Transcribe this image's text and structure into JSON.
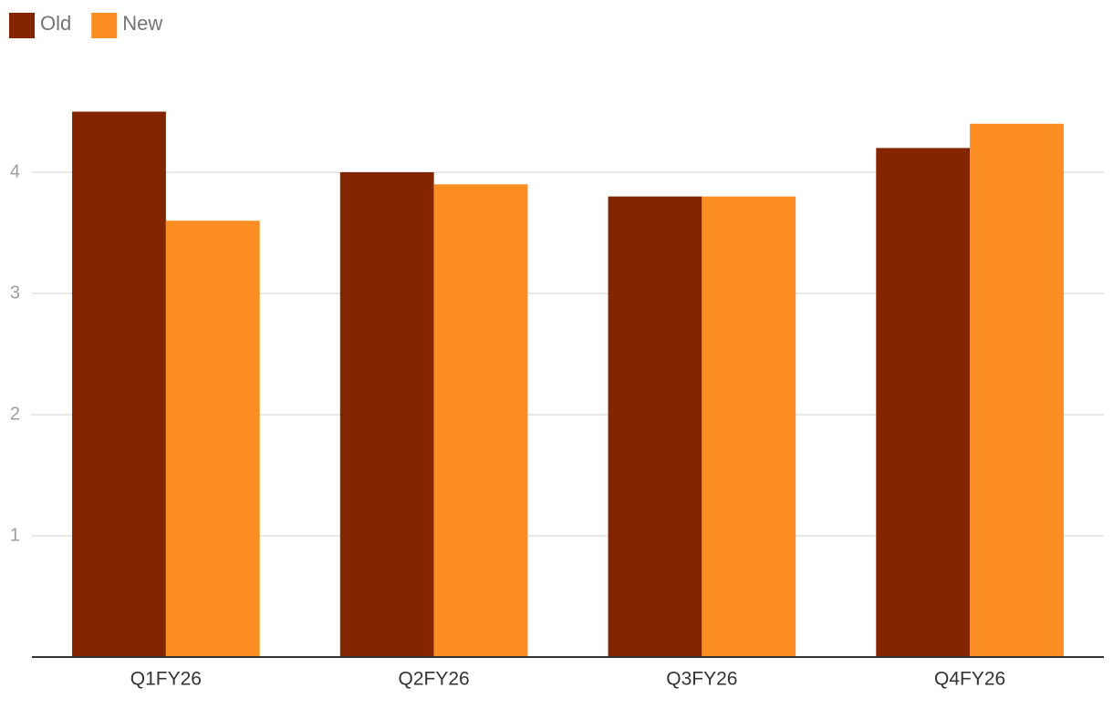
{
  "chart_data": {
    "type": "bar",
    "categories": [
      "Q1FY26",
      "Q2FY26",
      "Q3FY26",
      "Q4FY26"
    ],
    "series": [
      {
        "name": "Old",
        "color": "#832500",
        "values": [
          4.5,
          4.0,
          3.8,
          4.2
        ]
      },
      {
        "name": "New",
        "color": "#fb8d22",
        "values": [
          3.6,
          3.9,
          3.8,
          4.4
        ]
      }
    ],
    "ylim": [
      0,
      5
    ],
    "yticks": [
      1,
      2,
      3,
      4
    ],
    "grid": true,
    "legend": "top-left"
  }
}
